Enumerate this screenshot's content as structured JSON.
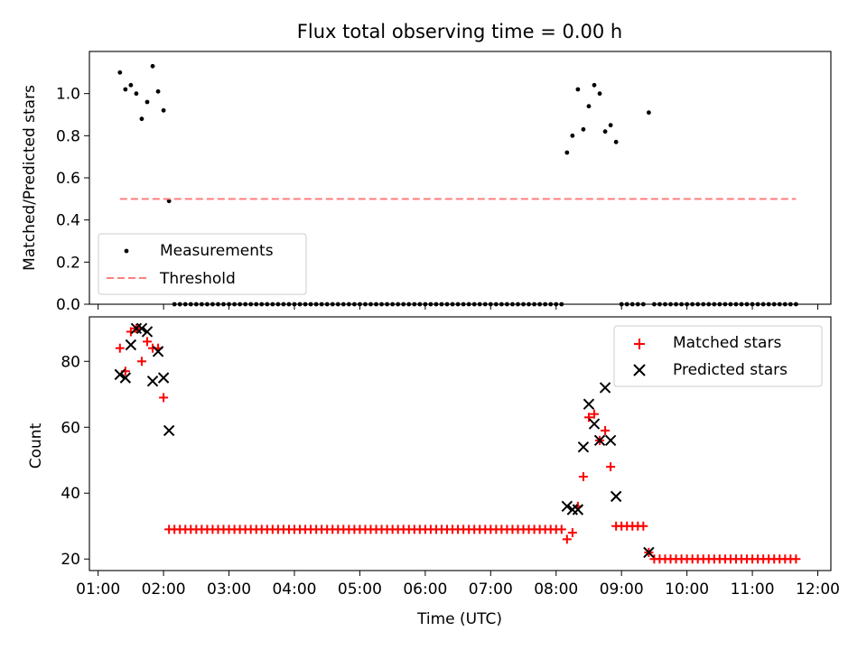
{
  "figure": {
    "title": "Flux total observing time = 0.00 h",
    "xlabel": "Time (UTC)",
    "xticks": [
      "01:00",
      "02:00",
      "03:00",
      "04:00",
      "05:00",
      "06:00",
      "07:00",
      "08:00",
      "09:00",
      "10:00",
      "11:00",
      "12:00"
    ]
  },
  "chart_data": [
    {
      "type": "scatter",
      "panel": "top",
      "ylabel": "Matched/Predicted stars",
      "xlim": [
        "00:52",
        "12:12"
      ],
      "ylim": [
        0,
        1.2
      ],
      "yticks": [
        "0.0",
        "0.2",
        "0.4",
        "0.6",
        "0.8",
        "1.0"
      ],
      "legend_placement": "lower-left",
      "series": [
        {
          "name": "Measurements",
          "marker": "dot",
          "color": "#000000",
          "points": [
            [
              "01:20",
              1.1
            ],
            [
              "01:25",
              1.02
            ],
            [
              "01:30",
              1.04
            ],
            [
              "01:35",
              1.0
            ],
            [
              "01:40",
              0.88
            ],
            [
              "01:45",
              0.96
            ],
            [
              "01:50",
              1.13
            ],
            [
              "01:55",
              1.01
            ],
            [
              "02:00",
              0.92
            ],
            [
              "02:05",
              0.49
            ],
            [
              "08:10",
              0.72
            ],
            [
              "08:15",
              0.8
            ],
            [
              "08:20",
              1.02
            ],
            [
              "08:25",
              0.83
            ],
            [
              "08:30",
              0.94
            ],
            [
              "08:35",
              1.04
            ],
            [
              "08:40",
              1.0
            ],
            [
              "08:45",
              0.82
            ],
            [
              "08:50",
              0.85
            ],
            [
              "08:55",
              0.77
            ],
            [
              "09:25",
              0.91
            ]
          ],
          "zero_runs": [
            [
              "02:10",
              "08:05"
            ],
            [
              "09:00",
              "09:20"
            ],
            [
              "09:30",
              "11:40"
            ]
          ]
        },
        {
          "name": "Threshold",
          "style": "dashed",
          "color": "#ff7f7f",
          "points": [
            [
              "01:20",
              0.5
            ],
            [
              "11:40",
              0.5
            ]
          ]
        }
      ]
    },
    {
      "type": "scatter",
      "panel": "bottom",
      "ylabel": "Count",
      "xlim": [
        "00:52",
        "12:12"
      ],
      "ylim": [
        16.5,
        93.5
      ],
      "yticks": [
        "20",
        "40",
        "60",
        "80"
      ],
      "legend_placement": "upper-right",
      "series": [
        {
          "name": "Matched stars",
          "marker": "plus",
          "color": "#ff0000",
          "points": [
            [
              "01:20",
              84
            ],
            [
              "01:25",
              77
            ],
            [
              "01:30",
              89
            ],
            [
              "01:35",
              90
            ],
            [
              "01:40",
              80
            ],
            [
              "01:45",
              86
            ],
            [
              "01:50",
              84
            ],
            [
              "01:55",
              84
            ],
            [
              "02:00",
              69
            ],
            [
              "08:10",
              26
            ],
            [
              "08:15",
              28
            ],
            [
              "08:20",
              36
            ],
            [
              "08:25",
              45
            ],
            [
              "08:30",
              63
            ],
            [
              "08:35",
              64
            ],
            [
              "08:40",
              56
            ],
            [
              "08:45",
              59
            ],
            [
              "08:50",
              48
            ],
            [
              "08:55",
              30
            ],
            [
              "09:00",
              30
            ],
            [
              "09:05",
              30
            ],
            [
              "09:10",
              30
            ],
            [
              "09:15",
              30
            ],
            [
              "09:20",
              30
            ],
            [
              "09:25",
              22
            ]
          ],
          "constant_runs": [
            {
              "from": "02:05",
              "to": "08:05",
              "value": 29
            },
            {
              "from": "09:30",
              "to": "11:40",
              "value": 20
            }
          ]
        },
        {
          "name": "Predicted stars",
          "marker": "x",
          "color": "#000000",
          "points": [
            [
              "01:20",
              76
            ],
            [
              "01:25",
              75
            ],
            [
              "01:30",
              85
            ],
            [
              "01:35",
              90
            ],
            [
              "01:40",
              90
            ],
            [
              "01:45",
              89
            ],
            [
              "01:50",
              74
            ],
            [
              "01:55",
              83
            ],
            [
              "02:00",
              75
            ],
            [
              "02:05",
              59
            ],
            [
              "08:10",
              36
            ],
            [
              "08:15",
              35
            ],
            [
              "08:20",
              35
            ],
            [
              "08:25",
              54
            ],
            [
              "08:30",
              67
            ],
            [
              "08:35",
              61
            ],
            [
              "08:40",
              56
            ],
            [
              "08:45",
              72
            ],
            [
              "08:50",
              56
            ],
            [
              "08:55",
              39
            ],
            [
              "09:25",
              22
            ]
          ]
        }
      ]
    }
  ]
}
